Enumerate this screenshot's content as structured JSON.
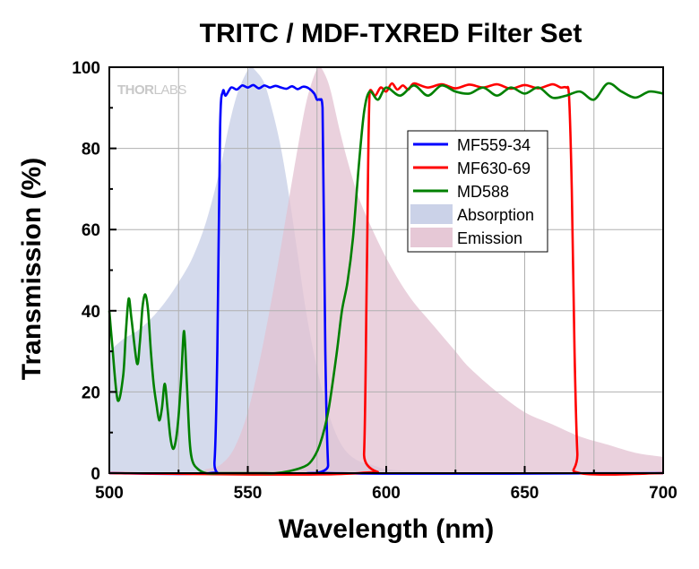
{
  "chart_data": {
    "type": "area",
    "title": "TRITC / MDF-TXRED Filter Set",
    "xlabel": "Wavelength (nm)",
    "ylabel": "Transmission (%)",
    "xlim": [
      500,
      700
    ],
    "ylim": [
      0,
      100
    ],
    "x_ticks": [
      500,
      550,
      600,
      650,
      700
    ],
    "y_ticks": [
      0,
      20,
      40,
      60,
      80,
      100
    ],
    "grid": true,
    "legend_position": "top-right",
    "watermark_main": "THOR",
    "watermark_sub": "LABS",
    "areas": [
      {
        "name": "Absorption",
        "color": "#c5cde6",
        "opacity": 0.75,
        "x": [
          500,
          505,
          510,
          515,
          520,
          525,
          530,
          535,
          540,
          543,
          546,
          549,
          551,
          553,
          556,
          559,
          562,
          565,
          568,
          571,
          574,
          577,
          580,
          583,
          586,
          590,
          595,
          600,
          610,
          620,
          630,
          640,
          650,
          660,
          670,
          680,
          690,
          700
        ],
        "values": [
          30,
          33,
          35,
          38,
          42,
          47,
          53,
          62,
          75,
          85,
          93,
          98,
          100,
          99,
          96,
          89,
          80,
          68,
          54,
          40,
          29,
          20,
          13,
          8,
          5,
          3,
          2,
          1,
          0.5,
          0.3,
          0.2,
          0.1,
          0,
          0,
          0,
          0,
          0,
          0
        ]
      },
      {
        "name": "Emission",
        "color": "#e3c2d2",
        "opacity": 0.75,
        "x": [
          500,
          530,
          535,
          540,
          545,
          550,
          555,
          560,
          565,
          568,
          571,
          574,
          576,
          578,
          580,
          583,
          586,
          590,
          595,
          600,
          605,
          610,
          615,
          620,
          625,
          630,
          640,
          650,
          660,
          670,
          680,
          690,
          700
        ],
        "values": [
          0,
          0,
          1,
          2,
          6,
          15,
          30,
          48,
          68,
          80,
          91,
          98,
          100,
          98,
          94,
          85,
          77,
          68,
          60,
          53,
          47,
          42,
          38,
          34,
          30,
          26,
          20,
          15,
          12,
          9,
          7,
          5,
          4
        ]
      }
    ],
    "series": [
      {
        "name": "MF559-34",
        "color": "#0000ff",
        "x": [
          500,
          536,
          538,
          539,
          540,
          541,
          542,
          544,
          546,
          548,
          550,
          552,
          554,
          556,
          558,
          560,
          562,
          564,
          566,
          568,
          570,
          572,
          574,
          575,
          576,
          577,
          578,
          579,
          580,
          700
        ],
        "values": [
          0,
          0,
          3,
          30,
          85,
          94,
          93,
          95,
          94.5,
          95.5,
          95,
          95.6,
          94.8,
          95.5,
          95,
          95.4,
          95,
          94.7,
          95.3,
          94.6,
          95.2,
          94.8,
          93.5,
          92,
          92,
          90,
          30,
          2,
          0,
          0
        ]
      },
      {
        "name": "MF630-69",
        "color": "#ff0000",
        "x": [
          500,
          590,
          592,
          593,
          594,
          596,
          598,
          600,
          602,
          604,
          606,
          608,
          610,
          615,
          620,
          625,
          630,
          635,
          640,
          645,
          650,
          655,
          660,
          663,
          665,
          666,
          667,
          668,
          669,
          670,
          700
        ],
        "values": [
          0,
          0,
          5,
          50,
          94,
          93,
          95,
          94,
          96,
          94.5,
          95.5,
          94.5,
          96,
          95,
          95.8,
          94.8,
          95.7,
          95,
          95.8,
          94.7,
          95.6,
          94.8,
          95.8,
          95,
          95,
          93,
          70,
          30,
          5,
          0,
          0
        ]
      },
      {
        "name": "MD588",
        "color": "#008000",
        "x": [
          500,
          501,
          503,
          505,
          506,
          507,
          508,
          510,
          511,
          512,
          513,
          514,
          515,
          516,
          517,
          518,
          519,
          520,
          521,
          522,
          523,
          524,
          525,
          526,
          527,
          528,
          529,
          530,
          532,
          535,
          540,
          545,
          550,
          555,
          560,
          565,
          570,
          573,
          576,
          579,
          582,
          584,
          586,
          588,
          590,
          592,
          594,
          597,
          600,
          605,
          610,
          615,
          620,
          625,
          630,
          635,
          640,
          645,
          650,
          655,
          660,
          665,
          670,
          675,
          680,
          685,
          690,
          695,
          700
        ],
        "values": [
          40,
          32,
          18,
          24,
          35,
          43,
          38,
          27,
          32,
          41,
          44,
          40,
          30,
          22,
          17,
          13,
          16,
          22,
          16,
          9,
          6,
          8,
          14,
          24,
          35,
          22,
          8,
          3,
          1,
          0,
          0,
          0,
          0,
          0,
          0,
          0.5,
          1.5,
          3,
          7,
          15,
          29,
          40,
          47,
          58,
          75,
          89,
          94,
          92,
          95,
          93,
          95.5,
          93,
          95.5,
          94,
          93.5,
          95,
          93,
          95,
          93.5,
          95,
          92.5,
          93,
          94,
          92,
          96,
          94,
          92.5,
          94,
          93.5
        ]
      }
    ],
    "legend": [
      "MF559-34",
      "MF630-69",
      "MD588",
      "Absorption",
      "Emission"
    ]
  }
}
